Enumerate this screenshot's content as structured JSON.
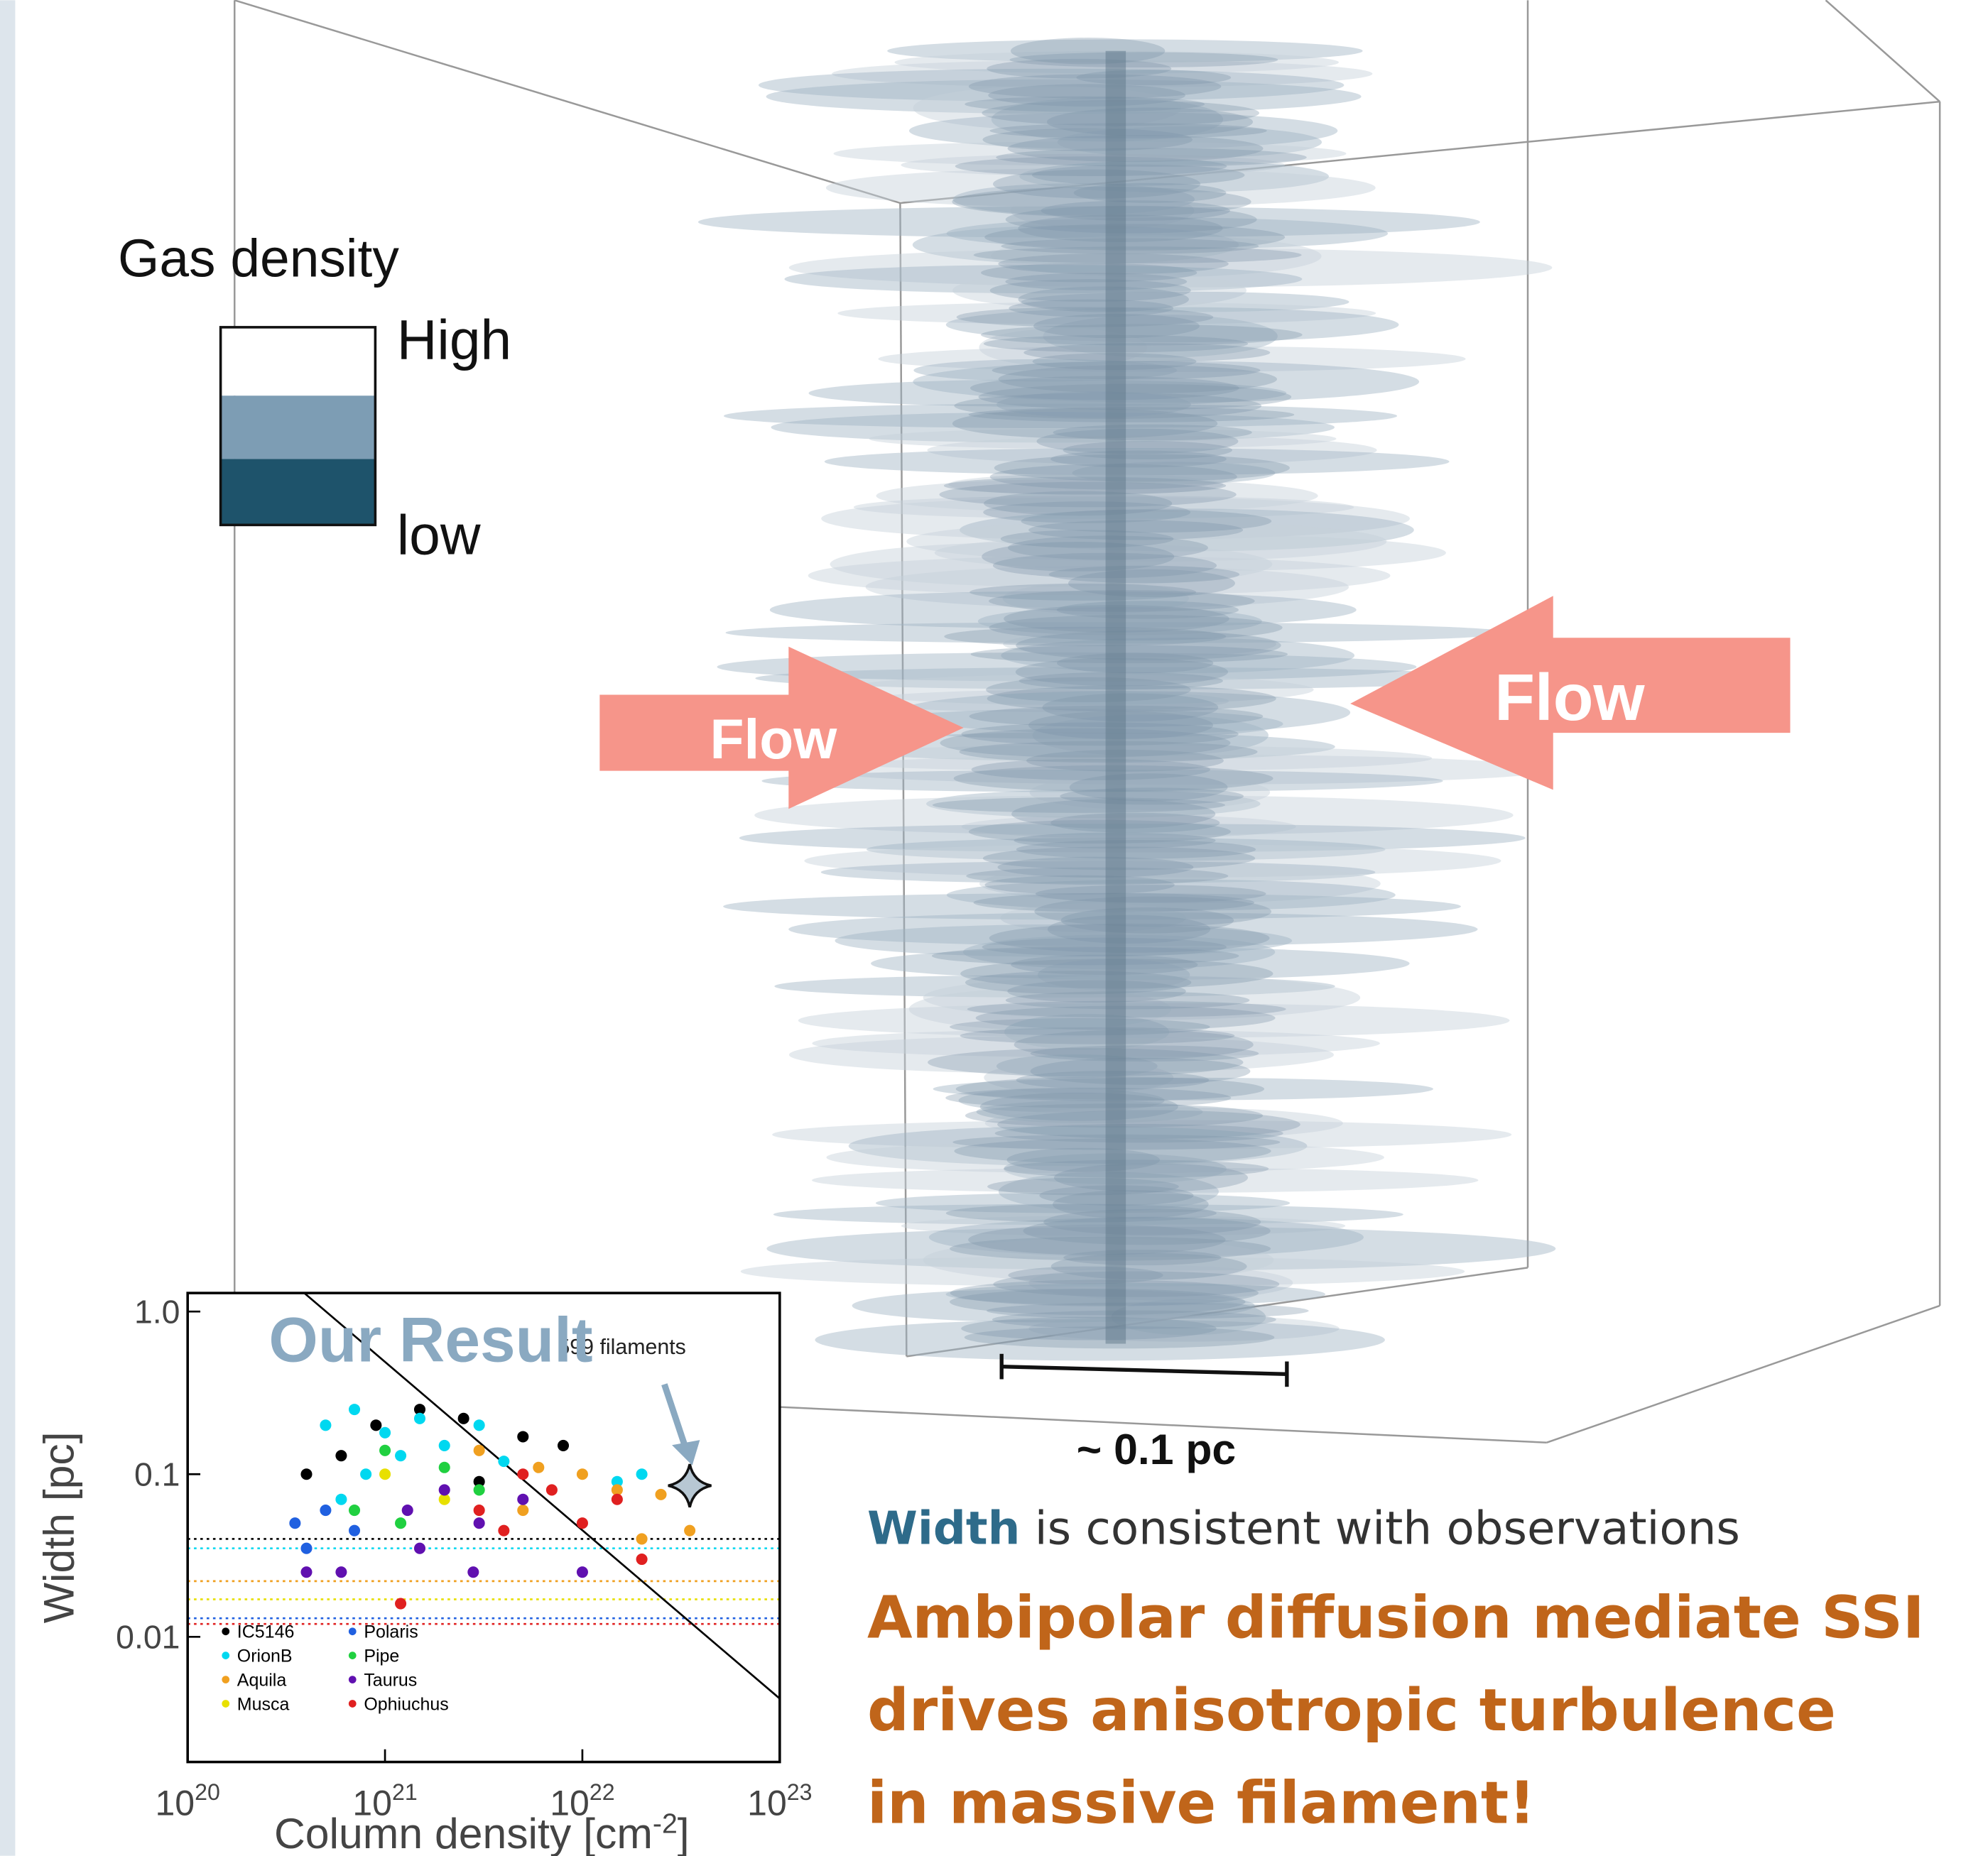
{
  "legend_box": {
    "title": "Gas density",
    "high": "High",
    "low": "low"
  },
  "arrows": {
    "left": "Flow",
    "right": "Flow"
  },
  "scale_bar": "~ 0.1 pc",
  "caption": {
    "bold": "Width",
    "rest": "is consistent with observations"
  },
  "headline": [
    "Ambipolar diffusion mediate SSI",
    "drives anisotropic turbulence",
    "in massive filament!"
  ],
  "chart_data": {
    "type": "scatter",
    "log_x": true,
    "log_y": true,
    "xlabel": {
      "text": "Column density [cm",
      "sup": "-2",
      "end": "]"
    },
    "ylabel": "Width [pc]",
    "xlim": [
      1e+20,
      1e+23
    ],
    "ylim": [
      0.0017,
      1.3
    ],
    "xticks": [
      {
        "value": 1e+20,
        "label": "10",
        "exponent": "20"
      },
      {
        "value": 1e+21,
        "label": "10",
        "exponent": "21"
      },
      {
        "value": 1e+22,
        "label": "10",
        "exponent": "22"
      },
      {
        "value": 1e+23,
        "label": "10",
        "exponent": "23"
      }
    ],
    "yticks": [
      {
        "value": 1,
        "label": "1.0"
      },
      0.1,
      0.01
    ],
    "note": "599 filaments",
    "result": {
      "label": "Our Result",
      "x": 3.5e+22,
      "y": 0.085
    },
    "hlines": [
      {
        "value": 0.04,
        "color": "#000000"
      },
      {
        "value": 0.035,
        "color": "#00d8f0"
      },
      {
        "value": 0.022,
        "color": "#f0a020"
      },
      {
        "value": 0.017,
        "color": "#e8e000"
      },
      {
        "value": 0.013,
        "color": "#2060e0"
      },
      {
        "value": 0.012,
        "color": "#e02020"
      }
    ],
    "series": [
      {
        "name": "IC5146",
        "color": "#000000",
        "x": [
          6e+20,
          9e+20,
          1.5e+21,
          2.5e+21,
          5e+21,
          8e+21,
          4e+20,
          3e+21
        ],
        "values": [
          0.13,
          0.2,
          0.25,
          0.22,
          0.17,
          0.15,
          0.1,
          0.09
        ]
      },
      {
        "name": "OrionB",
        "color": "#00d8f0",
        "x": [
          5e+20,
          7e+20,
          1e+21,
          1.5e+21,
          2e+21,
          3e+21,
          6e+20,
          8e+20,
          1.2e+21,
          4e+21,
          1.5e+22,
          2e+22
        ],
        "values": [
          0.2,
          0.25,
          0.18,
          0.22,
          0.15,
          0.2,
          0.07,
          0.1,
          0.13,
          0.12,
          0.09,
          0.1
        ]
      },
      {
        "name": "Aquila",
        "color": "#f0a020",
        "x": [
          3e+21,
          6e+21,
          1e+22,
          1.5e+22,
          2.5e+22,
          3.5e+22,
          5e+21,
          2e+22
        ],
        "values": [
          0.14,
          0.11,
          0.1,
          0.08,
          0.075,
          0.045,
          0.06,
          0.04
        ]
      },
      {
        "name": "Musca",
        "color": "#e8e000",
        "x": [
          1e+21,
          2e+21
        ],
        "values": [
          0.1,
          0.07
        ]
      },
      {
        "name": "Polaris",
        "color": "#2060e0",
        "x": [
          3.5e+20,
          4e+20,
          5e+20,
          7e+20
        ],
        "values": [
          0.05,
          0.035,
          0.06,
          0.045
        ]
      },
      {
        "name": "Pipe",
        "color": "#20d040",
        "x": [
          1e+21,
          2e+21,
          7e+20,
          1.2e+21,
          3e+21
        ],
        "values": [
          0.14,
          0.11,
          0.06,
          0.05,
          0.08
        ]
      },
      {
        "name": "Taurus",
        "color": "#6010b0",
        "x": [
          6e+20,
          1.3e+21,
          2e+21,
          3e+21,
          5e+21,
          1e+22,
          2.8e+21,
          1.5e+21,
          4e+20
        ],
        "values": [
          0.025,
          0.06,
          0.08,
          0.05,
          0.07,
          0.025,
          0.025,
          0.035,
          0.025
        ]
      },
      {
        "name": "Ophiuchus",
        "color": "#e02020",
        "x": [
          1.2e+21,
          3e+21,
          5e+21,
          7e+21,
          1e+22,
          1.5e+22,
          2e+22,
          4e+21
        ],
        "values": [
          0.016,
          0.06,
          0.1,
          0.08,
          0.05,
          0.07,
          0.03,
          0.045
        ]
      }
    ]
  }
}
